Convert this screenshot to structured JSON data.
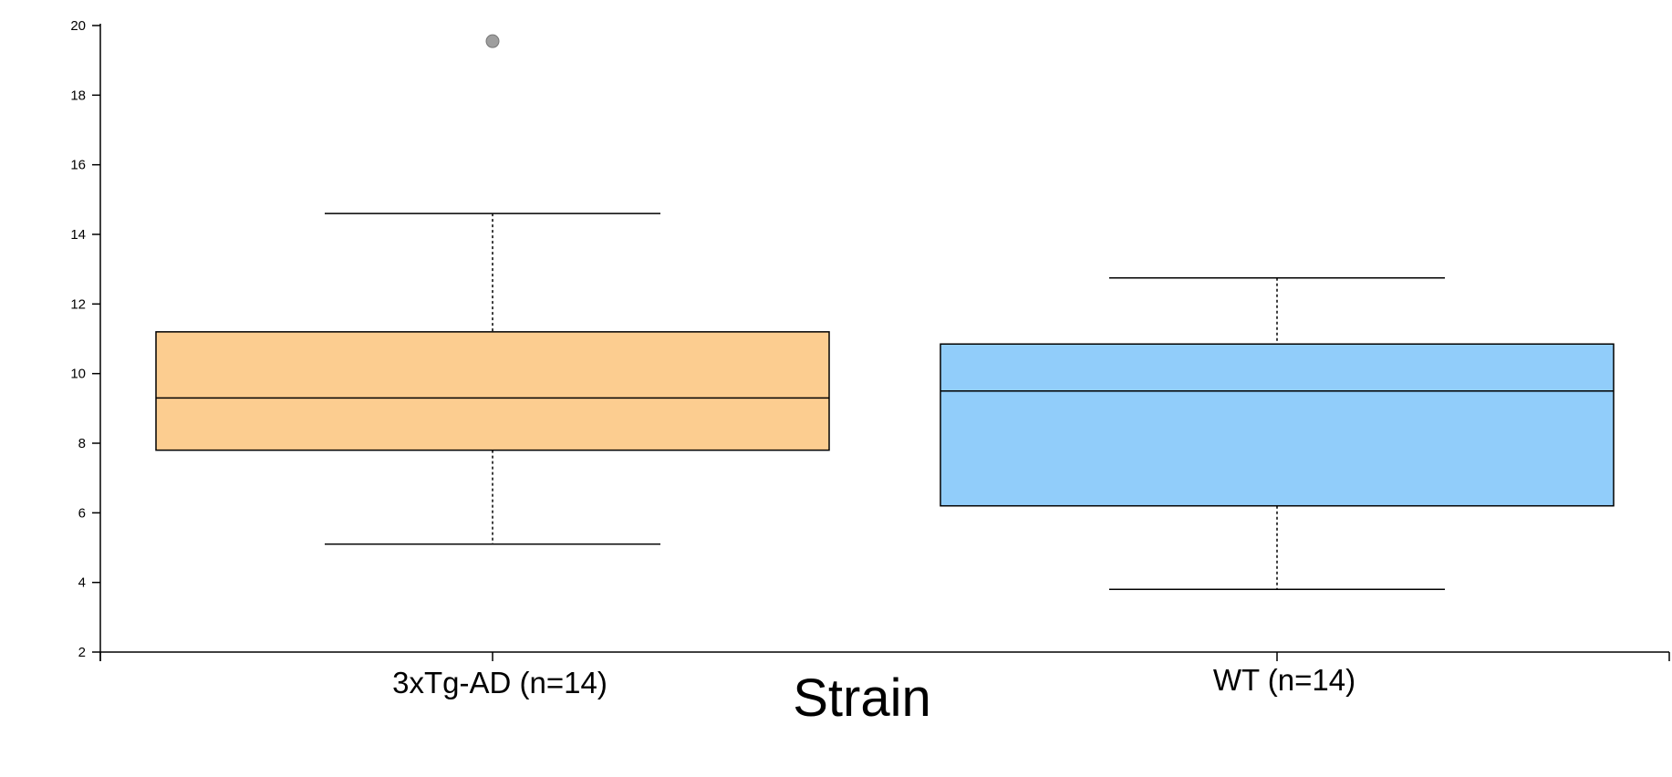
{
  "chart_data": {
    "type": "box",
    "xlabel": "Strain",
    "ylabel": "",
    "ylim": [
      2,
      20
    ],
    "yticks": [
      2,
      4,
      6,
      8,
      10,
      12,
      14,
      16,
      18,
      20
    ],
    "grid": false,
    "categories": [
      "3xTg-AD (n=14)",
      "WT (n=14)"
    ],
    "boxes": [
      {
        "category": "3xTg-AD (n=14)",
        "whisker_low": 5.1,
        "q1": 7.8,
        "median": 9.3,
        "q3": 11.2,
        "whisker_high": 14.6,
        "outliers": [
          19.55
        ],
        "color": "#fccd90"
      },
      {
        "category": "WT (n=14)",
        "whisker_low": 3.8,
        "q1": 6.2,
        "median": 9.5,
        "q3": 10.85,
        "whisker_high": 12.75,
        "outliers": [],
        "color": "#91cdfa"
      }
    ],
    "outlier_color": "#9e9e9e"
  }
}
